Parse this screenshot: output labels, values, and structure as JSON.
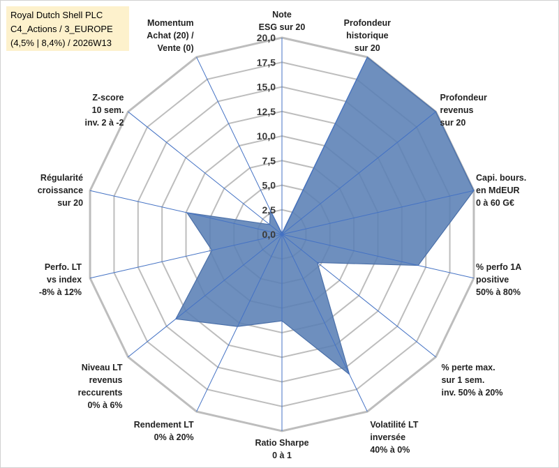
{
  "title_box": {
    "line1": "Royal Dutch Shell PLC",
    "line2": "C4_Actions / 3_EUROPE",
    "line3": "(4,5% | 8,4%) / 2026W13"
  },
  "chart_data": {
    "type": "radar",
    "rmin": 0,
    "rmax": 20,
    "ticks": [
      "0,0",
      "2,5",
      "5,0",
      "7,5",
      "10,0",
      "12,5",
      "15,0",
      "17,5",
      "20,0"
    ],
    "tick_values": [
      0,
      2.5,
      5,
      7.5,
      10,
      12.5,
      15,
      17.5,
      20
    ],
    "axes": [
      {
        "label": [
          "Note",
          "ESG sur 20"
        ],
        "value": 0.1
      },
      {
        "label": [
          "Profondeur",
          "historique",
          "sur 20"
        ],
        "value": 20
      },
      {
        "label": [
          "Profondeur",
          "revenus",
          "sur 20"
        ],
        "value": 20
      },
      {
        "label": [
          "Capi. bours.",
          "en MdEUR",
          "0 à 60 G€"
        ],
        "value": 20
      },
      {
        "label": [
          "% perfo 1A",
          "positive",
          "50% à 80%"
        ],
        "value": 14.2
      },
      {
        "label": [
          "% perte max.",
          "sur 1 sem.",
          "inv. 50% à 20%"
        ],
        "value": 4.6
      },
      {
        "label": [
          "Volatilité LT",
          "inversée",
          "40% à 0%"
        ],
        "value": 15.8
      },
      {
        "label": [
          "Ratio Sharpe",
          "0 à 1"
        ],
        "value": 8.8
      },
      {
        "label": [
          "Rendement LT",
          "0% à 20%"
        ],
        "value": 10.4
      },
      {
        "label": [
          "Niveau LT",
          "revenus",
          "reccurents",
          "0% à 6%"
        ],
        "value": 13.8
      },
      {
        "label": [
          "Perfo. LT",
          "vs index",
          "-8% à 12%"
        ],
        "value": 7.3
      },
      {
        "label": [
          "Régularité",
          "croissance",
          "sur 20"
        ],
        "value": 9.9
      },
      {
        "label": [
          "Z-score",
          "10 sem.",
          "inv. 2 à -2"
        ],
        "value": 1.6
      },
      {
        "label": [
          "Momentum",
          "Achat (20) /",
          "Vente (0)"
        ],
        "value": 2.7
      }
    ],
    "fill_color": "#5a7fb5",
    "line_color": "#4a6fa8",
    "grid_color": "#bdbdbd",
    "spoke_color": "#4472c4"
  }
}
